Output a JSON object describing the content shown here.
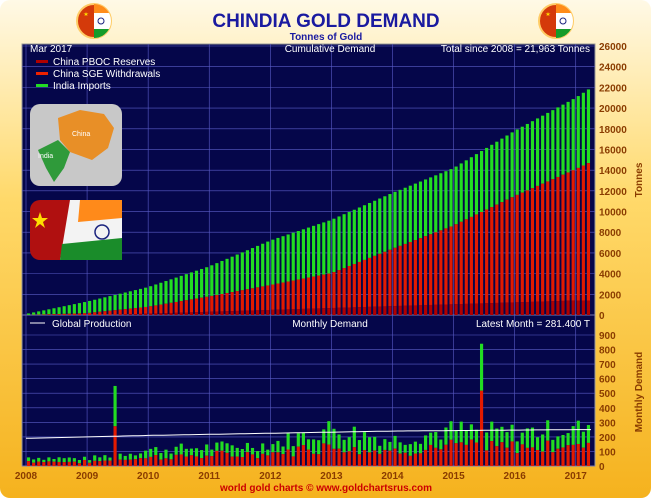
{
  "header": {
    "title": "CHINDIA GOLD DEMAND",
    "subtitle": "Tonnes of Gold",
    "footer": "world gold charts © www.goldchartsrus.com"
  },
  "top_panel": {
    "date_label": "Mar  2017",
    "panel_label": "Cumulative Demand",
    "total_label": "Total since 2008 = 21,963 Tonnes",
    "legend": [
      {
        "label": "China PBOC Reserves",
        "color": "#b00000"
      },
      {
        "label": "China SGE Withdrawals",
        "color": "#ee2200"
      },
      {
        "label": "India Imports",
        "color": "#22dd22"
      }
    ],
    "y_axis_label": "Tonnes",
    "y_ticks": [
      "0",
      "2000",
      "4000",
      "6000",
      "8000",
      "10000",
      "12000",
      "14000",
      "16000",
      "18000",
      "20000",
      "22000",
      "24000",
      "26000"
    ]
  },
  "bottom_panel": {
    "legend_label": "Global Production",
    "panel_label": "Monthly Demand",
    "latest_label": "Latest Month = 281.400 T",
    "y_axis_label": "Monthly Demand",
    "y_ticks": [
      "0",
      "100",
      "200",
      "300",
      "400",
      "500",
      "600",
      "700",
      "800",
      "900"
    ]
  },
  "x_axis": {
    "ticks": [
      "2008",
      "2009",
      "2010",
      "2011",
      "2012",
      "2013",
      "2014",
      "2015",
      "2016",
      "2017"
    ]
  },
  "colors": {
    "plot_bg": "#05064a",
    "grid": "#5a5cc8",
    "china": "#e31a00",
    "pboc": "#b00000",
    "india": "#22dd22",
    "production": "#ffffff",
    "title": "#1a1aa0",
    "footer": "#cc0000",
    "axis_label": "#8a3c00"
  },
  "icons": {
    "top_left": "china-india-flag-badge-icon",
    "top_right": "china-india-flag-badge-icon",
    "map": "china-india-map-icon",
    "flags": "china-india-flags-icon"
  },
  "chart_data": {
    "type": "bar",
    "x_range": [
      "2008-01",
      "2017-03"
    ],
    "top": {
      "stacked": true,
      "ylim": [
        0,
        26000
      ],
      "series": [
        {
          "name": "China PBOC Reserves",
          "values_at_end_2016": 1400
        },
        {
          "name": "China SGE Withdrawals",
          "values": [
            [
              2008,
              0
            ],
            [
              2009,
              180
            ],
            [
              2010,
              800
            ],
            [
              2011,
              1800
            ],
            [
              2012,
              2900
            ],
            [
              2013,
              4050
            ],
            [
              2014,
              6400
            ],
            [
              2015,
              8650
            ],
            [
              2016,
              11500
            ],
            [
              2017,
              14100
            ],
            [
              2017.25,
              14800
            ]
          ]
        },
        {
          "name": "India Imports",
          "cumulative_total": [
            [
              2008,
              100
            ],
            [
              2009,
              1300
            ],
            [
              2010,
              2700
            ],
            [
              2011,
              4700
            ],
            [
              2012,
              7200
            ],
            [
              2013,
              9200
            ],
            [
              2014,
              11800
            ],
            [
              2015,
              14200
            ],
            [
              2016,
              17800
            ],
            [
              2017,
              21000
            ],
            [
              2017.25,
              21963
            ]
          ]
        }
      ]
    },
    "bottom": {
      "ylim": [
        0,
        900
      ],
      "latest_month": 281.4,
      "monthly_total_by_year_avg": [
        [
          2008,
          60
        ],
        [
          2009,
          50
        ],
        [
          2010,
          110
        ],
        [
          2011,
          130
        ],
        [
          2012,
          150
        ],
        [
          2013,
          260
        ],
        [
          2014,
          180
        ],
        [
          2015,
          250
        ],
        [
          2016,
          230
        ],
        [
          2017,
          260
        ]
      ],
      "spikes": [
        [
          2009.42,
          550
        ],
        [
          2015.42,
          840
        ]
      ],
      "global_production": [
        [
          2008,
          190
        ],
        [
          2009,
          200
        ],
        [
          2010,
          210
        ],
        [
          2012,
          225
        ],
        [
          2014,
          240
        ],
        [
          2017,
          250
        ]
      ]
    }
  }
}
